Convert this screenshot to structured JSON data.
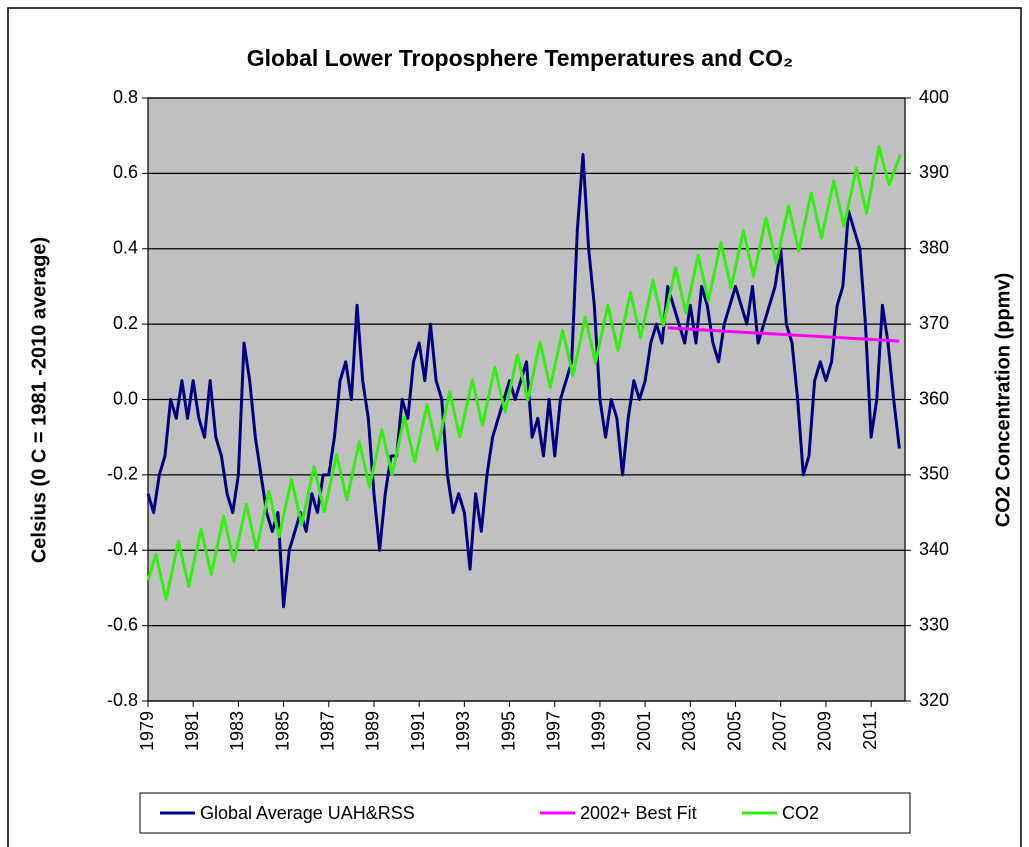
{
  "chart_data": {
    "type": "line",
    "title": "Global Lower Troposphere Temperatures and CO₂",
    "y_label": "Celsius (0 C = 1981 -2010 average)",
    "y2_label": "CO2 Concentration (ppmv)",
    "xlim": [
      1979,
      2012.5
    ],
    "xticks": [
      1979,
      1981,
      1983,
      1985,
      1987,
      1989,
      1991,
      1993,
      1995,
      1997,
      1999,
      2001,
      2003,
      2005,
      2007,
      2009,
      2011
    ],
    "ylim": [
      -0.8,
      0.8
    ],
    "yticks": [
      {
        "value": -0.8,
        "label": "-0.8"
      },
      {
        "value": -0.6,
        "label": "-0.6"
      },
      {
        "value": -0.4,
        "label": "-0.4"
      },
      {
        "value": -0.2,
        "label": "-0.2"
      },
      {
        "value": 0,
        "label": "0.0"
      },
      {
        "value": 0.2,
        "label": "0.2"
      },
      {
        "value": 0.4,
        "label": "0.4"
      },
      {
        "value": 0.6,
        "label": "0.6"
      },
      {
        "value": 0.8,
        "label": "0.8"
      }
    ],
    "y2lim": [
      320,
      400
    ],
    "y2ticks": [
      320,
      330,
      340,
      350,
      360,
      370,
      380,
      390,
      400
    ],
    "grid": true,
    "background": "#c0c0c0",
    "legend": "bottom",
    "series": [
      {
        "name": "Global Average UAH&RSS",
        "color": "#000080",
        "axis": "y",
        "x": [
          1979,
          1979.25,
          1979.5,
          1979.75,
          1980,
          1980.25,
          1980.5,
          1980.75,
          1981,
          1981.25,
          1981.5,
          1981.75,
          1982,
          1982.25,
          1982.5,
          1982.75,
          1983,
          1983.25,
          1983.5,
          1983.75,
          1984,
          1984.25,
          1984.5,
          1984.75,
          1985,
          1985.25,
          1985.5,
          1985.75,
          1986,
          1986.25,
          1986.5,
          1986.75,
          1987,
          1987.25,
          1987.5,
          1987.75,
          1988,
          1988.25,
          1988.5,
          1988.75,
          1989,
          1989.25,
          1989.5,
          1989.75,
          1990,
          1990.25,
          1990.5,
          1990.75,
          1991,
          1991.25,
          1991.5,
          1991.75,
          1992,
          1992.25,
          1992.5,
          1992.75,
          1993,
          1993.25,
          1993.5,
          1993.75,
          1994,
          1994.25,
          1994.5,
          1994.75,
          1995,
          1995.25,
          1995.5,
          1995.75,
          1996,
          1996.25,
          1996.5,
          1996.75,
          1997,
          1997.25,
          1997.5,
          1997.75,
          1998,
          1998.25,
          1998.5,
          1998.75,
          1999,
          1999.25,
          1999.5,
          1999.75,
          2000,
          2000.25,
          2000.5,
          2000.75,
          2001,
          2001.25,
          2001.5,
          2001.75,
          2002,
          2002.25,
          2002.5,
          2002.75,
          2003,
          2003.25,
          2003.5,
          2003.75,
          2004,
          2004.25,
          2004.5,
          2004.75,
          2005,
          2005.25,
          2005.5,
          2005.75,
          2006,
          2006.25,
          2006.5,
          2006.75,
          2007,
          2007.25,
          2007.5,
          2007.75,
          2008,
          2008.25,
          2008.5,
          2008.75,
          2009,
          2009.25,
          2009.5,
          2009.75,
          2010,
          2010.25,
          2010.5,
          2010.75,
          2011,
          2011.25,
          2011.5,
          2011.75,
          2012,
          2012.25
        ],
        "values": [
          -0.25,
          -0.3,
          -0.2,
          -0.15,
          0.0,
          -0.05,
          0.05,
          -0.05,
          0.05,
          -0.05,
          -0.1,
          0.05,
          -0.1,
          -0.15,
          -0.25,
          -0.3,
          -0.2,
          0.15,
          0.05,
          -0.1,
          -0.2,
          -0.3,
          -0.35,
          -0.3,
          -0.55,
          -0.4,
          -0.35,
          -0.3,
          -0.35,
          -0.25,
          -0.3,
          -0.2,
          -0.2,
          -0.1,
          0.05,
          0.1,
          0.0,
          0.25,
          0.05,
          -0.05,
          -0.25,
          -0.4,
          -0.25,
          -0.15,
          -0.15,
          0.0,
          -0.05,
          0.1,
          0.15,
          0.05,
          0.2,
          0.05,
          0.0,
          -0.2,
          -0.3,
          -0.25,
          -0.3,
          -0.45,
          -0.25,
          -0.35,
          -0.2,
          -0.1,
          -0.05,
          0.0,
          0.05,
          0.0,
          0.05,
          0.1,
          -0.1,
          -0.05,
          -0.15,
          0.0,
          -0.15,
          0.0,
          0.05,
          0.1,
          0.45,
          0.65,
          0.4,
          0.25,
          0.0,
          -0.1,
          0.0,
          -0.05,
          -0.2,
          -0.05,
          0.05,
          0.0,
          0.05,
          0.15,
          0.2,
          0.15,
          0.3,
          0.25,
          0.2,
          0.15,
          0.25,
          0.15,
          0.3,
          0.25,
          0.15,
          0.1,
          0.2,
          0.25,
          0.3,
          0.25,
          0.2,
          0.3,
          0.15,
          0.2,
          0.25,
          0.3,
          0.4,
          0.2,
          0.15,
          0.0,
          -0.2,
          -0.15,
          0.05,
          0.1,
          0.05,
          0.1,
          0.25,
          0.3,
          0.5,
          0.45,
          0.4,
          0.2,
          -0.1,
          0.0,
          0.25,
          0.15,
          0.0,
          -0.13
        ]
      },
      {
        "name": "2002+ Best Fit",
        "color": "#ff00ff",
        "axis": "y",
        "x": [
          2002,
          2012.25
        ],
        "values": [
          0.19,
          0.155
        ]
      },
      {
        "name": "CO2",
        "color": "#33ee11",
        "axis": "y2",
        "x": [
          1979,
          1979.35,
          1979.8,
          1980.35,
          1980.8,
          1981.35,
          1981.8,
          1982.35,
          1982.8,
          1983.35,
          1983.8,
          1984.35,
          1984.8,
          1985.35,
          1985.8,
          1986.35,
          1986.8,
          1987.35,
          1987.8,
          1988.35,
          1988.8,
          1989.35,
          1989.8,
          1990.35,
          1990.8,
          1991.35,
          1991.8,
          1992.35,
          1992.8,
          1993.35,
          1993.8,
          1994.35,
          1994.8,
          1995.35,
          1995.8,
          1996.35,
          1996.8,
          1997.35,
          1997.8,
          1998.35,
          1998.8,
          1999.35,
          1999.8,
          2000.35,
          2000.8,
          2001.35,
          2001.8,
          2002.35,
          2002.8,
          2003.35,
          2003.8,
          2004.35,
          2004.8,
          2005.35,
          2005.8,
          2006.35,
          2006.8,
          2007.35,
          2007.8,
          2008.35,
          2008.8,
          2009.35,
          2009.8,
          2010.35,
          2010.8,
          2011.35,
          2011.8,
          2012.3
        ],
        "values": [
          336,
          339.5,
          333.5,
          341.2,
          335.2,
          342.8,
          336.8,
          344.5,
          338.5,
          346.1,
          340.1,
          347.8,
          341.8,
          349.4,
          343.4,
          351.1,
          345.1,
          352.7,
          346.7,
          354.4,
          348.4,
          356,
          350,
          357.7,
          351.7,
          359.3,
          353.3,
          361,
          355,
          362.6,
          356.6,
          364.3,
          358.3,
          365.9,
          359.9,
          367.6,
          361.6,
          369.2,
          363.2,
          370.9,
          364.9,
          372.5,
          366.5,
          374.2,
          368.2,
          375.8,
          369.8,
          377.5,
          371.5,
          379.1,
          373.1,
          380.8,
          374.8,
          382.4,
          376.4,
          384.1,
          378.1,
          385.7,
          379.7,
          387.4,
          381.4,
          389,
          383,
          390.7,
          384.7,
          393.5,
          388.5,
          392.5
        ]
      }
    ]
  }
}
